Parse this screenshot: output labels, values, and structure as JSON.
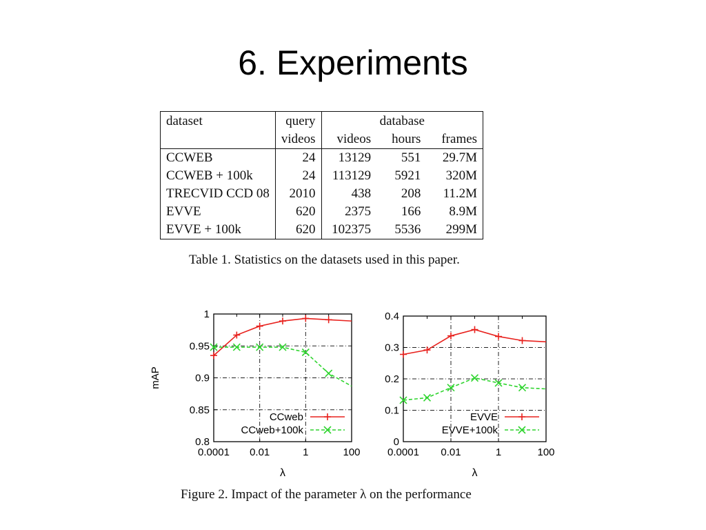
{
  "slide": {
    "title": "6. Experiments"
  },
  "table": {
    "caption": "Table 1. Statistics on the datasets used in this paper.",
    "headers": {
      "dataset": "dataset",
      "query_line1": "query",
      "query_line2": "videos",
      "database": "database",
      "videos": "videos",
      "hours": "hours",
      "frames": "frames"
    },
    "rows": [
      {
        "dataset": "CCWEB",
        "query_videos": "24",
        "videos": "13129",
        "hours": "551",
        "frames": "29.7M"
      },
      {
        "dataset": "CCWEB + 100k",
        "query_videos": "24",
        "videos": "113129",
        "hours": "5921",
        "frames": "320M"
      },
      {
        "dataset": "TRECVID CCD 08",
        "query_videos": "2010",
        "videos": "438",
        "hours": "208",
        "frames": "11.2M"
      },
      {
        "dataset": "EVVE",
        "query_videos": "620",
        "videos": "2375",
        "hours": "166",
        "frames": "8.9M"
      },
      {
        "dataset": "EVVE + 100k",
        "query_videos": "620",
        "videos": "102375",
        "hours": "5536",
        "frames": "299M"
      }
    ]
  },
  "figure": {
    "caption": "Figure 2. Impact of the parameter λ on the performance"
  },
  "chart_data": [
    {
      "type": "line",
      "xlabel": "λ",
      "ylabel": "mAP",
      "xscale": "log",
      "xlim": [
        0.0001,
        100
      ],
      "ylim": [
        0.8,
        1
      ],
      "xticks": [
        "0.0001",
        "0.01",
        "1",
        "100"
      ],
      "yticks": [
        "0.8",
        "0.85",
        "0.9",
        "0.95",
        "1"
      ],
      "grid": true,
      "legend_position": "bottom-right",
      "series": [
        {
          "name": "CCweb",
          "color": "#e8211d",
          "marker": "plus",
          "x": [
            0.0001,
            0.001,
            0.01,
            0.1,
            1,
            10,
            100
          ],
          "y": [
            0.935,
            0.967,
            0.981,
            0.989,
            0.993,
            0.991,
            0.989
          ]
        },
        {
          "name": "CCweb+100k",
          "color": "#2ed42e",
          "marker": "cross",
          "x": [
            0.0001,
            0.001,
            0.01,
            0.1,
            1,
            10,
            100
          ],
          "y": [
            0.948,
            0.948,
            0.948,
            0.948,
            0.94,
            0.907,
            0.887
          ]
        }
      ]
    },
    {
      "type": "line",
      "xlabel": "λ",
      "ylabel": "",
      "xscale": "log",
      "xlim": [
        0.0001,
        100
      ],
      "ylim": [
        0,
        0.4
      ],
      "xticks": [
        "0.0001",
        "0.01",
        "1",
        "100"
      ],
      "yticks": [
        "0",
        "0.1",
        "0.2",
        "0.3",
        "0.4"
      ],
      "grid": true,
      "legend_position": "bottom-right",
      "series": [
        {
          "name": "EVVE",
          "color": "#e8211d",
          "marker": "plus",
          "x": [
            0.0001,
            0.001,
            0.01,
            0.1,
            1,
            10,
            100
          ],
          "y": [
            0.278,
            0.292,
            0.337,
            0.357,
            0.335,
            0.322,
            0.318
          ]
        },
        {
          "name": "EVVE+100k",
          "color": "#2ed42e",
          "marker": "cross",
          "x": [
            0.0001,
            0.001,
            0.01,
            0.1,
            1,
            10,
            100
          ],
          "y": [
            0.132,
            0.14,
            0.172,
            0.203,
            0.187,
            0.172,
            0.168
          ]
        }
      ]
    }
  ]
}
